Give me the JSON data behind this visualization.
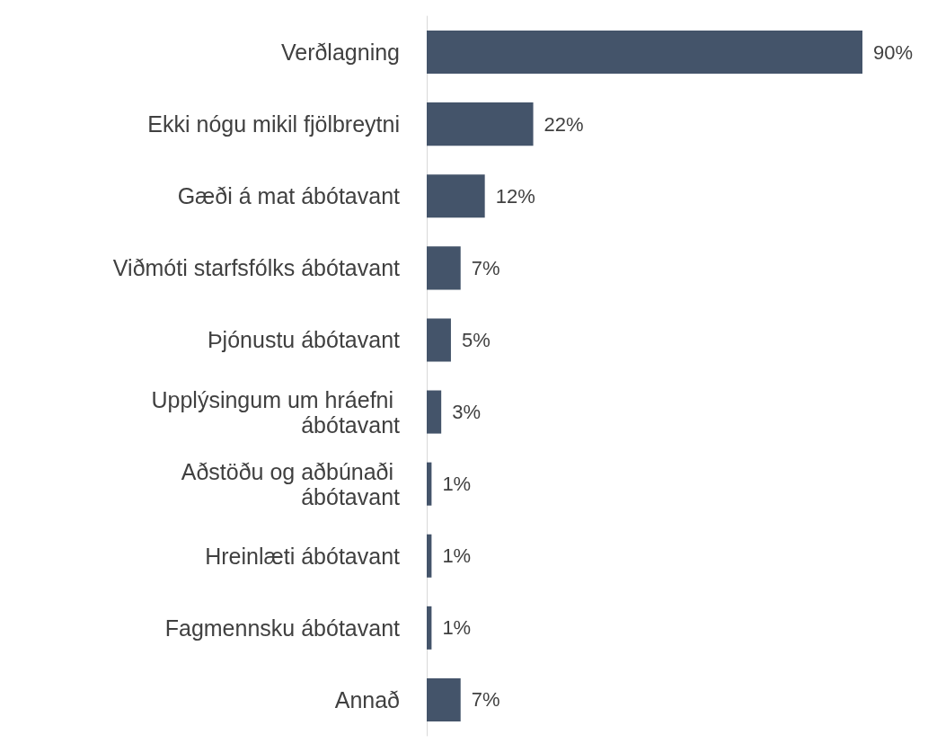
{
  "chart_data": {
    "type": "bar",
    "orientation": "horizontal",
    "categories": [
      "Verðlagning",
      "Ekki nógu mikil fjölbreytni",
      "Gæði á mat ábótavant",
      "Viðmóti starfsfólks ábótavant",
      "Þjónustu ábótavant",
      "Upplýsingum um hráefni ábótavant",
      "Aðstöðu og aðbúnaði ábótavant",
      "Hreinlæti ábótavant",
      "Fagmennsku ábótavant",
      "Annað"
    ],
    "values": [
      90,
      22,
      12,
      7,
      5,
      3,
      1,
      1,
      1,
      7
    ],
    "value_labels": [
      "90%",
      "22%",
      "12%",
      "7%",
      "5%",
      "3%",
      "1%",
      "1%",
      "1%",
      "7%"
    ],
    "color": "#44546a"
  }
}
